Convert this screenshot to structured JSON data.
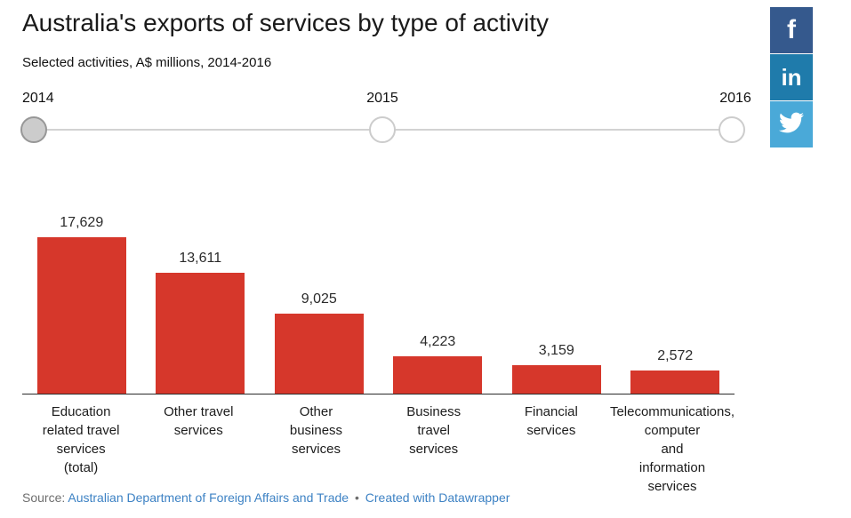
{
  "title": "Australia's exports of services by type of activity",
  "subtitle": "Selected activities, A$ millions, 2014-2016",
  "slider": {
    "years": [
      "2014",
      "2015",
      "2016"
    ],
    "selected_year": "2014"
  },
  "social": {
    "facebook_label": "f",
    "linkedin_label": "in",
    "twitter_icon": "twitter-bird",
    "facebook_color": "#35598d",
    "linkedin_color": "#1f7bab",
    "twitter_color": "#4aa9d8"
  },
  "chart_data": {
    "type": "bar",
    "title": "Australia's exports of services by type of activity",
    "subtitle": "Selected activities, A$ millions, 2014-2016",
    "year_shown": "2014",
    "categories": [
      "Education related travel services (total)",
      "Other travel services",
      "Other business services",
      "Business travel services",
      "Financial services",
      "Telecommunications, computer and information services"
    ],
    "category_lines": [
      [
        "Education",
        "related travel",
        "services",
        "(total)"
      ],
      [
        "Other travel",
        "services"
      ],
      [
        "Other",
        "business",
        "services"
      ],
      [
        "Business",
        "travel",
        "services"
      ],
      [
        "Financial",
        "services"
      ],
      [
        "Telecommunications,",
        "computer",
        "and",
        "information",
        "services"
      ]
    ],
    "values": [
      17629,
      13611,
      9025,
      4223,
      3159,
      2572
    ],
    "value_labels": [
      "17,629",
      "13,611",
      "9,025",
      "4,223",
      "3,159",
      "2,572"
    ],
    "xlabel": "",
    "ylabel": "A$ millions",
    "ylim": [
      0,
      17629
    ],
    "grid": false,
    "legend": "none",
    "bar_color": "#d6372b"
  },
  "footer": {
    "source_prefix": "Source:",
    "source_link": "Australian Department of Foreign Affairs and Trade",
    "separator": "•",
    "credit_link": "Created with Datawrapper"
  }
}
